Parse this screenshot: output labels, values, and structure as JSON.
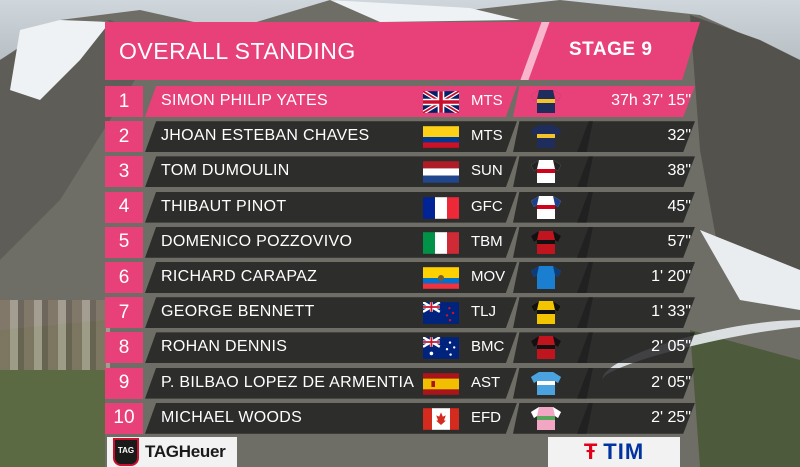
{
  "header": {
    "title": "OVERALL STANDING",
    "stage": "STAGE 9"
  },
  "colors": {
    "accent": "#e8417a",
    "row_bg": "#1e1e20"
  },
  "riders": [
    {
      "rank": "1",
      "name": "SIMON PHILIP YATES",
      "flag": "gb-flag",
      "team": "MTS",
      "jersey": "leader-jersey",
      "time": "37h 37' 15\""
    },
    {
      "rank": "2",
      "name": "JHOAN ESTEBAN CHAVES",
      "flag": "co-flag",
      "team": "MTS",
      "jersey": "mts-jersey",
      "time": "32\""
    },
    {
      "rank": "3",
      "name": "TOM DUMOULIN",
      "flag": "nl-flag",
      "team": "SUN",
      "jersey": "sun-jersey",
      "time": "38\""
    },
    {
      "rank": "4",
      "name": "THIBAUT PINOT",
      "flag": "fr-flag",
      "team": "GFC",
      "jersey": "gfc-jersey",
      "time": "45\""
    },
    {
      "rank": "5",
      "name": "DOMENICO POZZOVIVO",
      "flag": "it-flag",
      "team": "TBM",
      "jersey": "tbm-jersey",
      "time": "57\""
    },
    {
      "rank": "6",
      "name": "RICHARD CARAPAZ",
      "flag": "ec-flag",
      "team": "MOV",
      "jersey": "mov-jersey",
      "time": "1' 20\""
    },
    {
      "rank": "7",
      "name": "GEORGE BENNETT",
      "flag": "nz-flag",
      "team": "TLJ",
      "jersey": "tlj-jersey",
      "time": "1' 33\""
    },
    {
      "rank": "8",
      "name": "ROHAN DENNIS",
      "flag": "au-flag",
      "team": "BMC",
      "jersey": "bmc-jersey",
      "time": "2' 05\""
    },
    {
      "rank": "9",
      "name": "P. BILBAO LOPEZ DE ARMENTIA",
      "flag": "es-flag",
      "team": "AST",
      "jersey": "ast-jersey",
      "time": "2' 05\""
    },
    {
      "rank": "10",
      "name": "MICHAEL WOODS",
      "flag": "ca-flag",
      "team": "EFD",
      "jersey": "efd-jersey",
      "time": "2' 25\""
    }
  ],
  "sponsors": {
    "left": "TAGHeuer",
    "left_badge": "TAG",
    "right": "TIM"
  }
}
